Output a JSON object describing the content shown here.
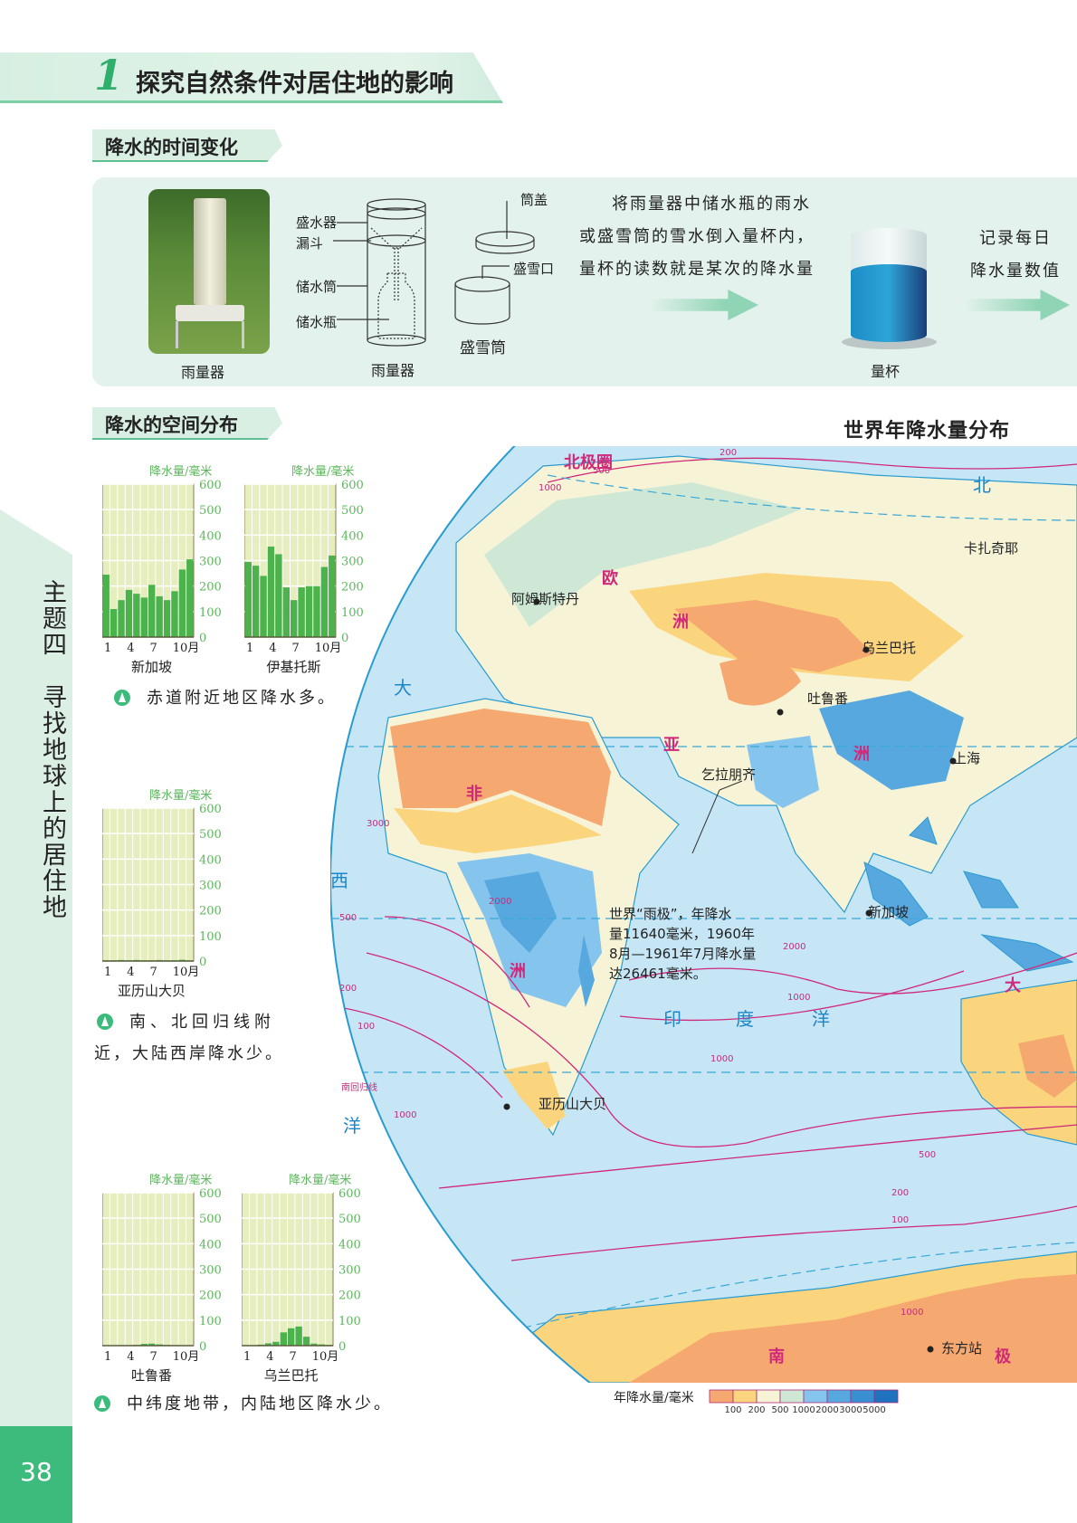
{
  "header": {
    "number": "1",
    "title": "探究自然条件对居住地的影响"
  },
  "section_time": {
    "title": "降水的时间变化",
    "photo_label": "雨量器",
    "diagram": {
      "labels": [
        "盛水器",
        "漏斗",
        "储水筒",
        "储水瓶"
      ],
      "title": "雨量器",
      "lid": "筒盖",
      "snow_mouth": "盛雪口",
      "snow_can": "盛雪筒"
    },
    "instruction": [
      "将雨量器中储水瓶的雨水",
      "或盛雪筒的雪水倒入量杯内，",
      "量杯的读数就是某次的降水量"
    ],
    "beaker_label": "量杯",
    "record": [
      "记录每日",
      "降水量数值"
    ]
  },
  "section_space": {
    "title": "降水的空间分布"
  },
  "sidebar": {
    "theme": "主题四　寻找地球上的居住地",
    "page": "38"
  },
  "captions": {
    "c1": "赤道附近地区降水多。",
    "c2a": "南、北回归线附",
    "c2b": "近，大陆西岸降水少。",
    "c3": "中纬度地带，内陆地区降水少。"
  },
  "chart_data": [
    {
      "type": "bar",
      "title": "新加坡",
      "ylabel": "降水量/毫米",
      "ylim": [
        0,
        600
      ],
      "yticks": [
        0,
        100,
        200,
        300,
        400,
        500,
        600
      ],
      "xticks": [
        "1",
        "4",
        "7",
        "10月"
      ],
      "categories": [
        "1",
        "2",
        "3",
        "4",
        "5",
        "6",
        "7",
        "8",
        "9",
        "10",
        "11",
        "12"
      ],
      "values": [
        245,
        110,
        145,
        185,
        170,
        155,
        205,
        160,
        145,
        180,
        265,
        305
      ],
      "color": "#4cb34c"
    },
    {
      "type": "bar",
      "title": "伊基托斯",
      "ylabel": "降水量/毫米",
      "ylim": [
        0,
        600
      ],
      "yticks": [
        0,
        100,
        200,
        300,
        400,
        500,
        600
      ],
      "xticks": [
        "1",
        "4",
        "7",
        "10月"
      ],
      "categories": [
        "1",
        "2",
        "3",
        "4",
        "5",
        "6",
        "7",
        "8",
        "9",
        "10",
        "11",
        "12"
      ],
      "values": [
        295,
        280,
        240,
        355,
        325,
        195,
        145,
        195,
        200,
        200,
        275,
        320
      ],
      "color": "#4cb34c"
    },
    {
      "type": "bar",
      "title": "亚历山大贝",
      "ylabel": "降水量/毫米",
      "ylim": [
        0,
        600
      ],
      "yticks": [
        0,
        100,
        200,
        300,
        400,
        500,
        600
      ],
      "xticks": [
        "1",
        "4",
        "7",
        "10月"
      ],
      "categories": [
        "1",
        "2",
        "3",
        "4",
        "5",
        "6",
        "7",
        "8",
        "9",
        "10",
        "11",
        "12"
      ],
      "values": [
        3,
        3,
        4,
        3,
        4,
        3,
        3,
        4,
        3,
        3,
        5,
        3
      ],
      "color": "#4cb34c"
    },
    {
      "type": "bar",
      "title": "吐鲁番",
      "ylabel": "降水量/毫米",
      "ylim": [
        0,
        600
      ],
      "yticks": [
        0,
        100,
        200,
        300,
        400,
        500,
        600
      ],
      "xticks": [
        "1",
        "4",
        "7",
        "10月"
      ],
      "categories": [
        "1",
        "2",
        "3",
        "4",
        "5",
        "6",
        "7",
        "8",
        "9",
        "10",
        "11",
        "12"
      ],
      "values": [
        1,
        1,
        2,
        2,
        3,
        7,
        8,
        5,
        3,
        2,
        1,
        1
      ],
      "color": "#4cb34c"
    },
    {
      "type": "bar",
      "title": "乌兰巴托",
      "ylabel": "降水量/毫米",
      "ylim": [
        0,
        600
      ],
      "yticks": [
        0,
        100,
        200,
        300,
        400,
        500,
        600
      ],
      "xticks": [
        "1",
        "4",
        "7",
        "10月"
      ],
      "categories": [
        "1",
        "2",
        "3",
        "4",
        "5",
        "6",
        "7",
        "8",
        "9",
        "10",
        "11",
        "12"
      ],
      "values": [
        2,
        2,
        4,
        9,
        15,
        52,
        68,
        75,
        35,
        8,
        5,
        3
      ],
      "color": "#4cb34c"
    }
  ],
  "map": {
    "title": "世界年降水量分布",
    "places": [
      "北",
      "卡扎奇耶",
      "阿姆斯特丹",
      "欧",
      "洲",
      "乌兰巴托",
      "吐鲁番",
      "大",
      "亚",
      "洲",
      "上海",
      "非",
      "乞拉朋齐",
      "西",
      "新加坡",
      "洲",
      "印",
      "度",
      "洋",
      "大",
      "洋",
      "亚历山大贝",
      "南",
      "极",
      "东方站",
      "北极圈",
      "南回归线"
    ],
    "note": [
      "世界“雨极”，年降水",
      "量11640毫米，1960年",
      "8月—1961年7月降水量",
      "达26461毫米。"
    ],
    "contours": [
      "200",
      "500",
      "1000",
      "2000",
      "3000",
      "500",
      "200",
      "100",
      "1000",
      "2000",
      "1000",
      "1000",
      "500",
      "200",
      "100",
      "1000"
    ],
    "legend": {
      "title": "年降水量/毫米",
      "breaks": [
        "100",
        "200",
        "500",
        "1000",
        "2000",
        "3000",
        "5000"
      ],
      "colors": [
        "#f5a870",
        "#fbd57e",
        "#f7f3d6",
        "#cfe8d6",
        "#85c4ec",
        "#58a8e0",
        "#3a8fd3",
        "#1f72bd"
      ]
    }
  }
}
